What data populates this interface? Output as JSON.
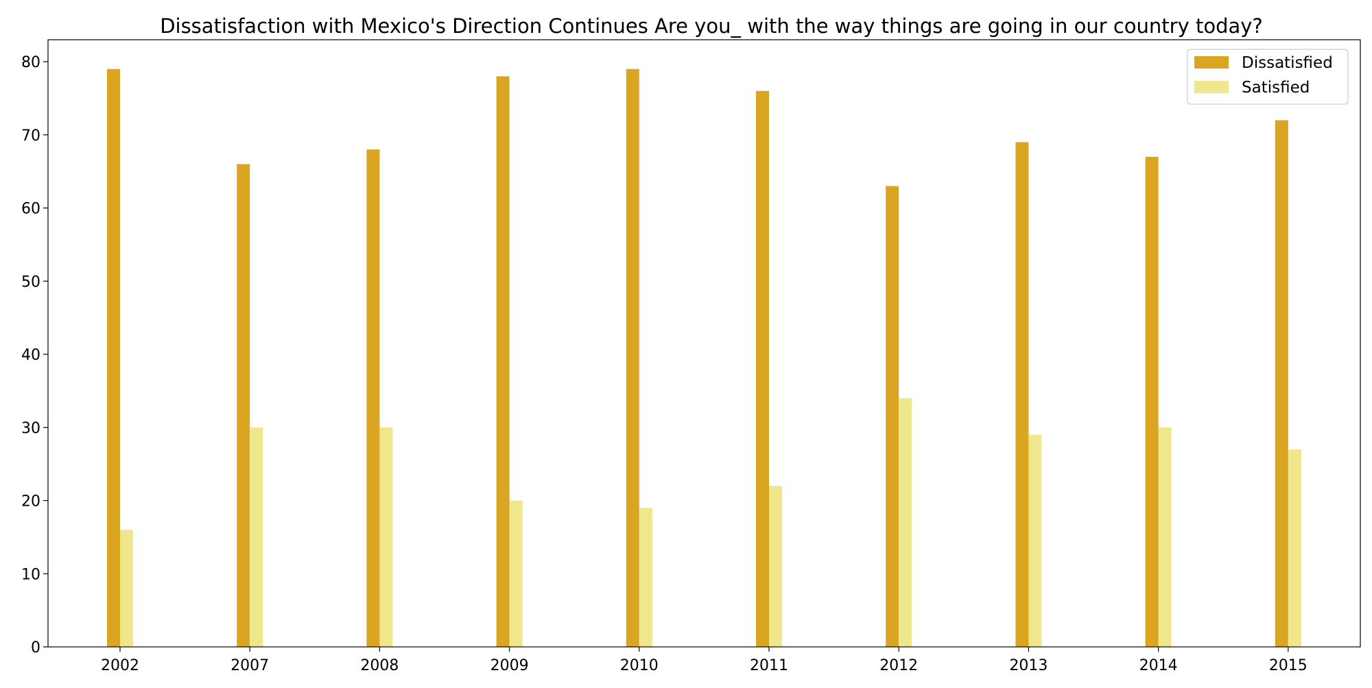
{
  "chart_data": {
    "type": "bar",
    "title": "Dissatisfaction with Mexico's Direction Continues Are you_ with the way things are going in our country today?",
    "xlabel": "",
    "ylabel": "",
    "categories": [
      "2002",
      "2007",
      "2008",
      "2009",
      "2010",
      "2011",
      "2012",
      "2013",
      "2014",
      "2015"
    ],
    "series": [
      {
        "name": "Dissatisfied",
        "color": "#DAA520",
        "values": [
          79,
          66,
          68,
          78,
          79,
          76,
          63,
          69,
          67,
          72
        ]
      },
      {
        "name": "Satisfied",
        "color": "#F0E68C",
        "values": [
          16,
          30,
          30,
          20,
          19,
          22,
          34,
          29,
          30,
          27
        ]
      }
    ],
    "ylim": [
      0,
      83
    ],
    "yticks": [
      0,
      10,
      20,
      30,
      40,
      50,
      60,
      70,
      80
    ],
    "grid": false,
    "legend_position": "top-right"
  }
}
